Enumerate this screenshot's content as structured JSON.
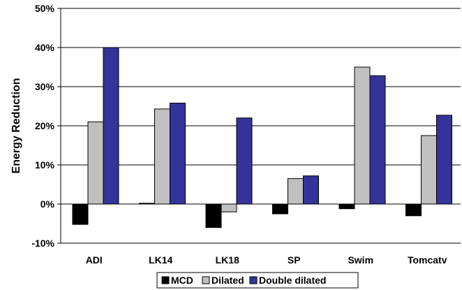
{
  "chart_data": {
    "type": "bar",
    "ylabel": "Energy Reduction",
    "ylim": [
      -10,
      50
    ],
    "yticks": [
      -10,
      0,
      10,
      20,
      30,
      40,
      50
    ],
    "ytick_labels": [
      "-10%",
      "0%",
      "10%",
      "20%",
      "30%",
      "40%",
      "50%"
    ],
    "gridlines": true,
    "legend_position": "bottom",
    "categories": [
      "ADI",
      "LK14",
      "LK18",
      "SP",
      "Swim",
      "Tomcatv"
    ],
    "series": [
      {
        "name": "MCD",
        "color": "#000000",
        "values": [
          -5.2,
          0.2,
          -6.0,
          -2.5,
          -1.2,
          -3.0
        ]
      },
      {
        "name": "Dilated",
        "color": "#c0c0c0",
        "values": [
          21.0,
          24.3,
          -2.0,
          6.5,
          35.0,
          17.5
        ]
      },
      {
        "name": "Double dilated",
        "color": "#333399",
        "values": [
          40.0,
          25.8,
          22.0,
          7.2,
          32.8,
          22.7
        ]
      }
    ]
  }
}
